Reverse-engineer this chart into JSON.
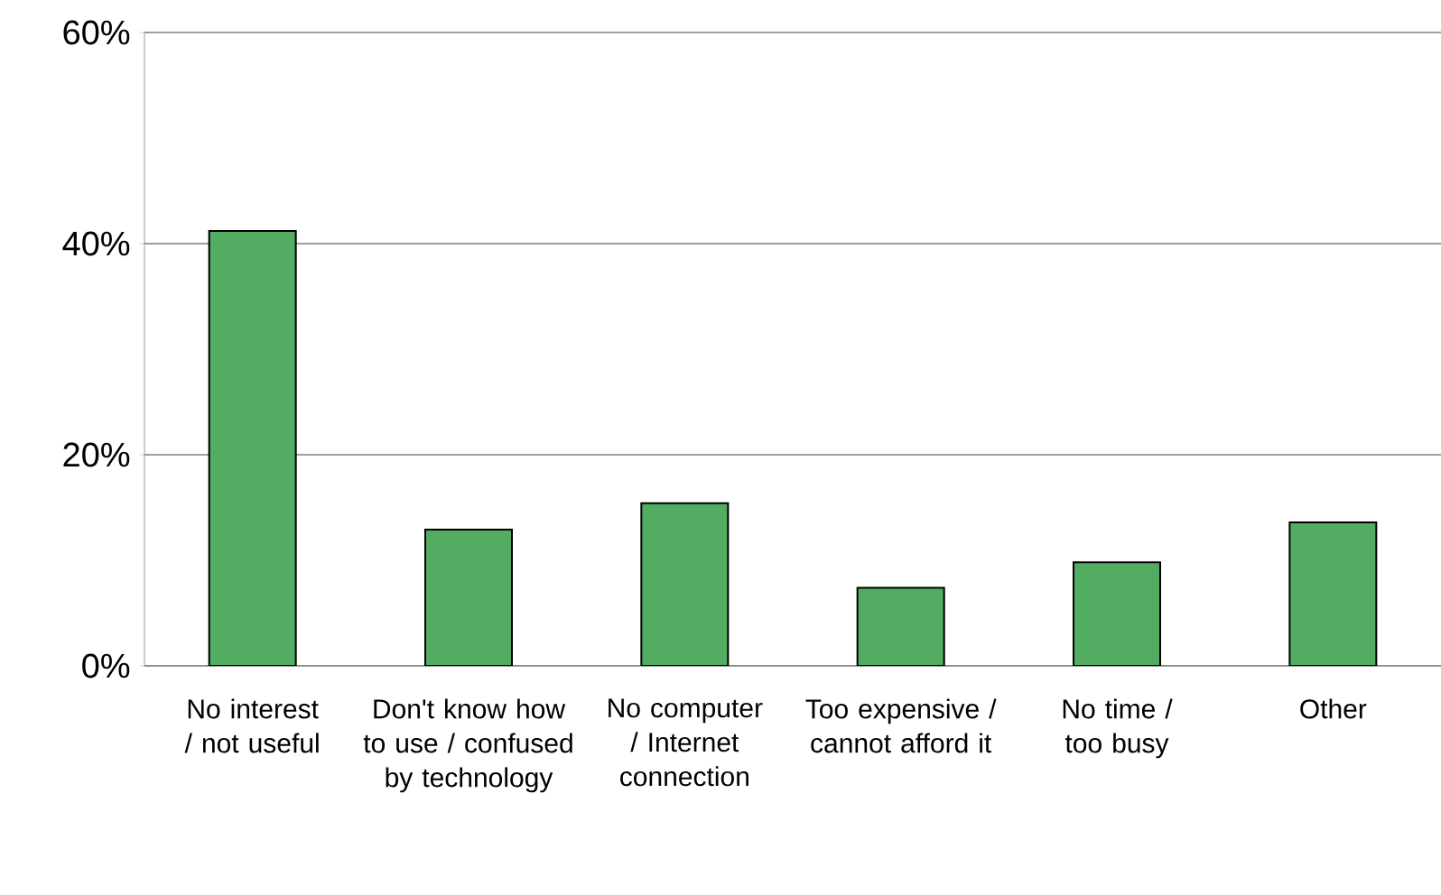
{
  "chart_data": {
    "type": "bar",
    "categories": [
      "No interest / not useful",
      "Don't know how to use / confused by technology",
      "No computer / Internet connection",
      "Too expensive / cannot afford it",
      "No time / too busy",
      "Other"
    ],
    "values": [
      41.2,
      12.9,
      15.4,
      7.4,
      9.8,
      13.6
    ],
    "color": "#52ad62",
    "ylim": [
      0,
      60
    ],
    "yticks": [
      {
        "value": 0,
        "label": "0%"
      },
      {
        "value": 20,
        "label": "20%"
      },
      {
        "value": 40,
        "label": "40%"
      },
      {
        "value": 60,
        "label": "60%"
      }
    ],
    "grid": "y"
  }
}
